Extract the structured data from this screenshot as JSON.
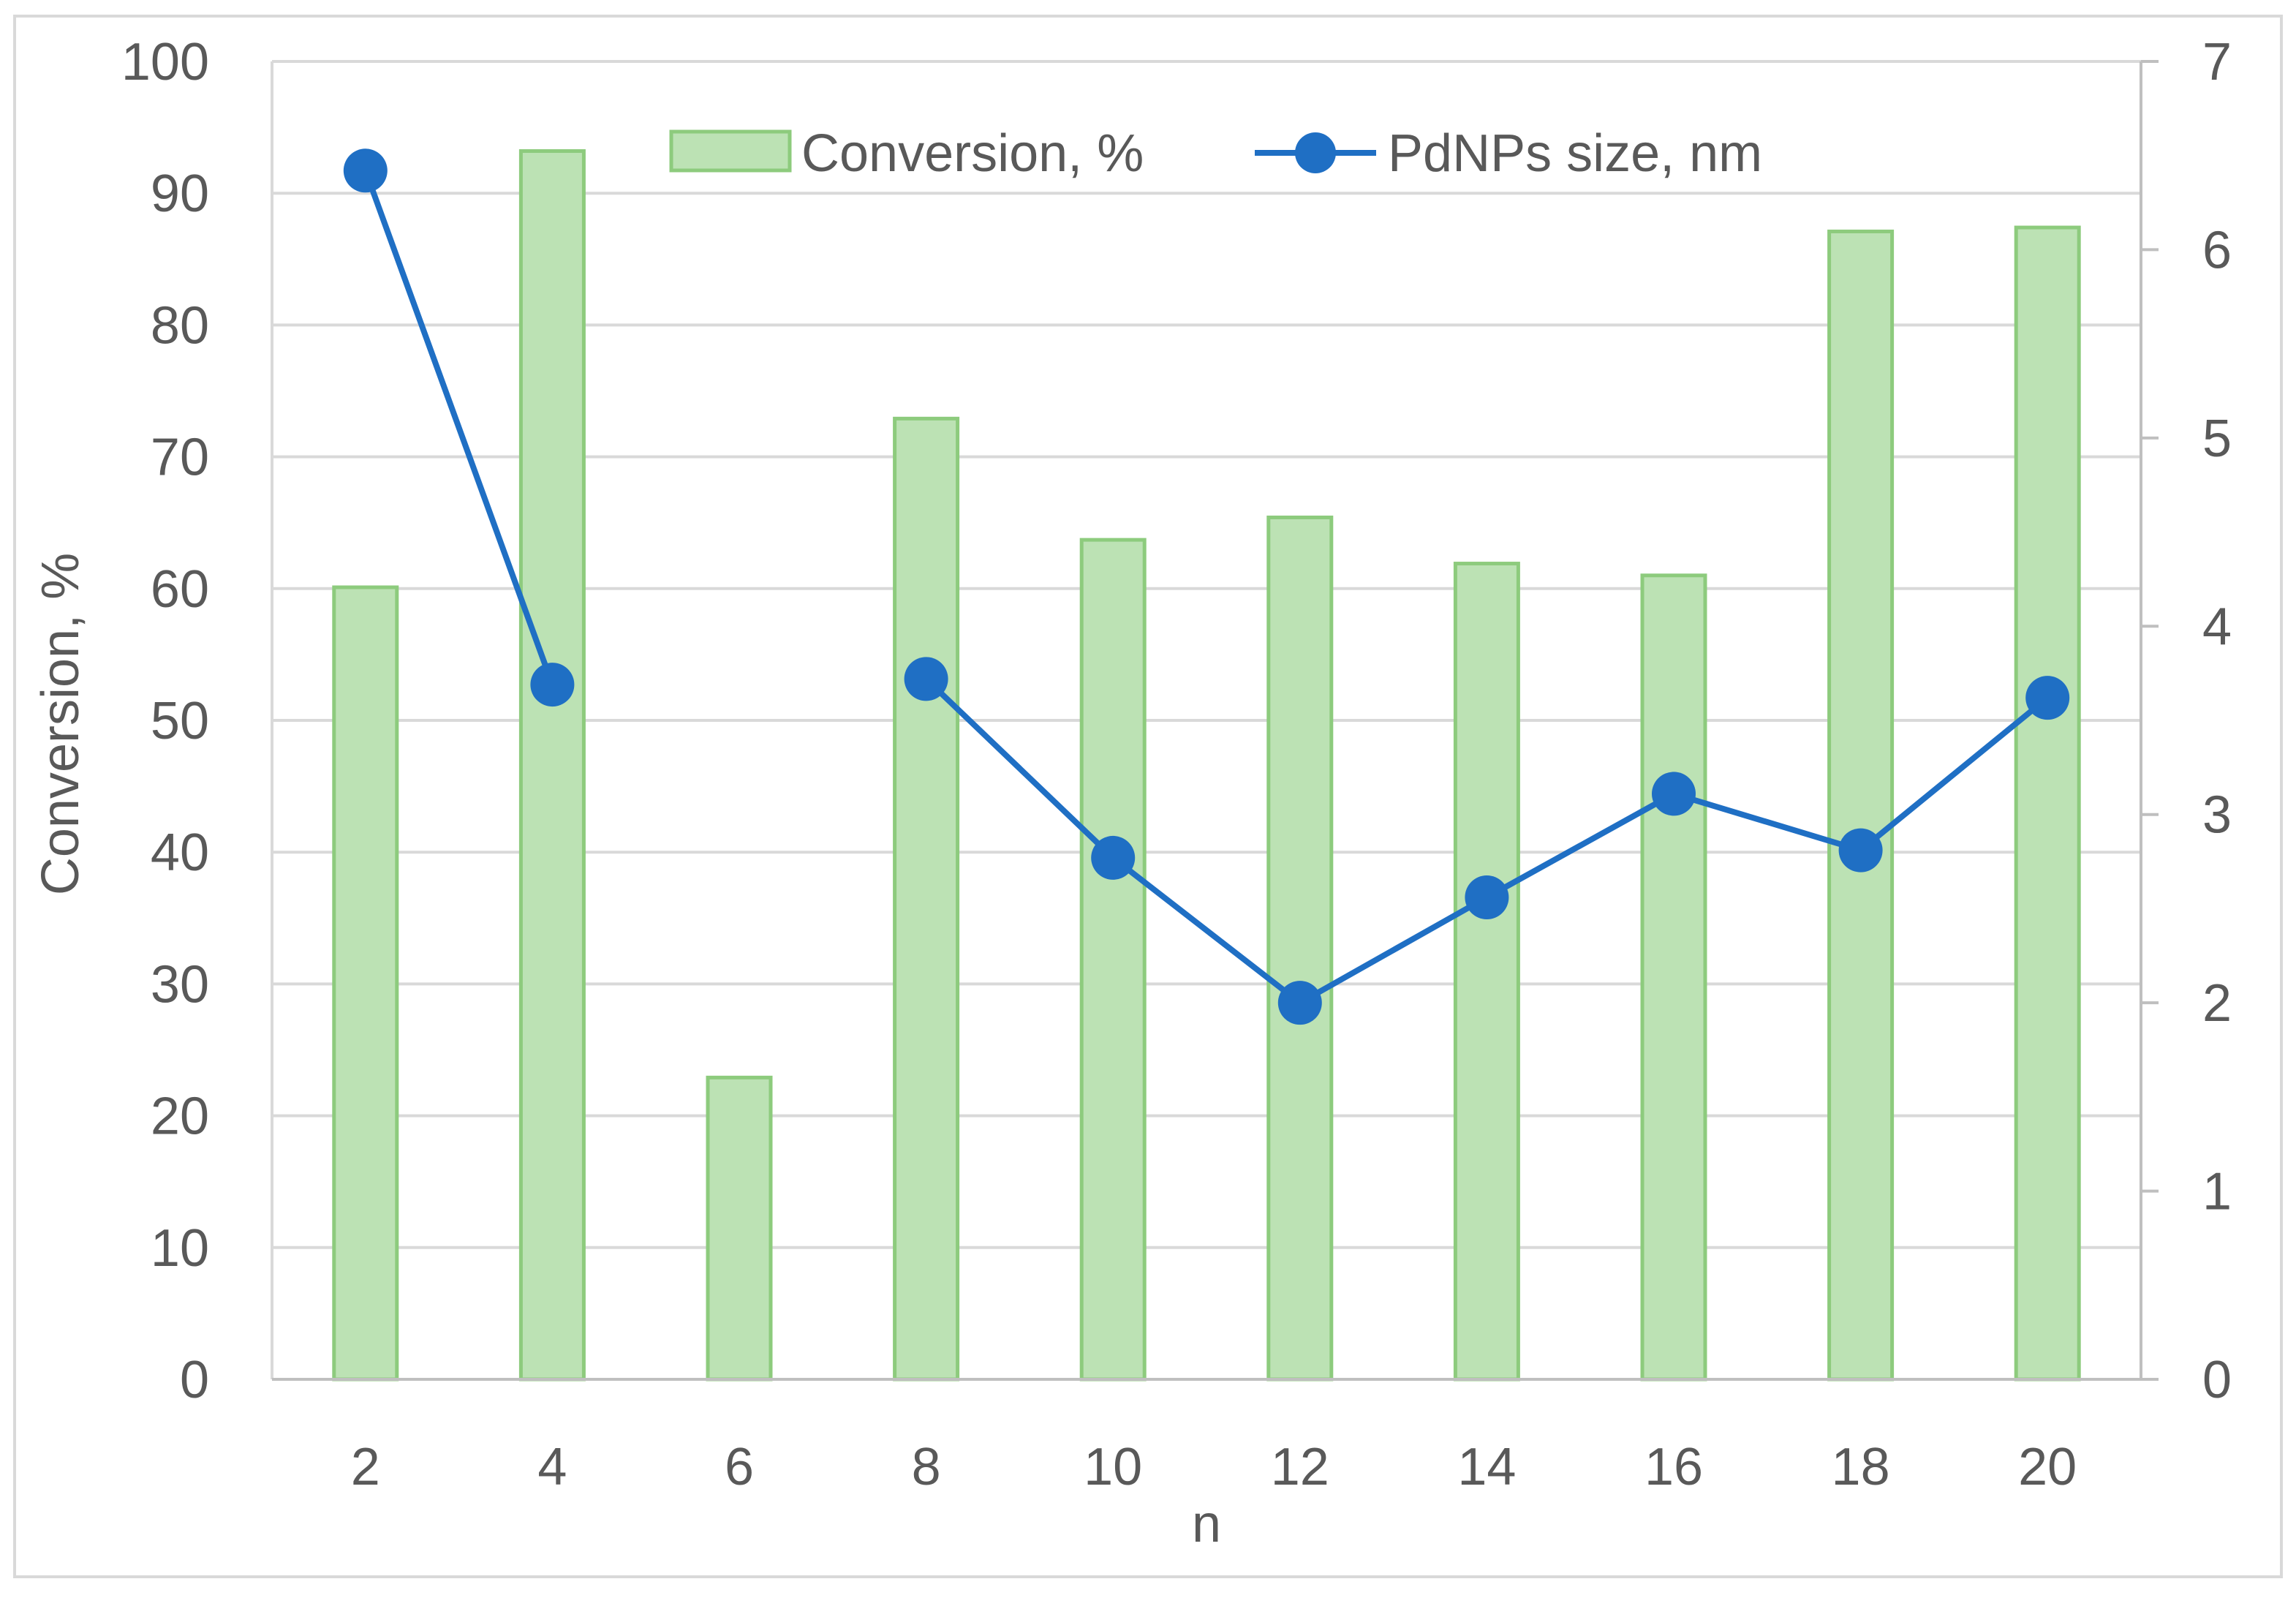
{
  "chart_data": {
    "type": "bar",
    "x": [
      2,
      4,
      6,
      8,
      10,
      12,
      14,
      16,
      18,
      20
    ],
    "categories": [
      "2",
      "4",
      "6",
      "8",
      "10",
      "12",
      "14",
      "16",
      "18",
      "20"
    ],
    "xlabel": "n",
    "ylabel": "Conversion, %",
    "y2label": "",
    "ylim": [
      0,
      100
    ],
    "y2lim": [
      0,
      7
    ],
    "yticks": [
      0,
      10,
      20,
      30,
      40,
      50,
      60,
      70,
      80,
      90,
      100
    ],
    "y2ticks": [
      0,
      1,
      2,
      3,
      4,
      5,
      6,
      7
    ],
    "grid": true,
    "legend_position": "top-center",
    "series": [
      {
        "name": "Conversion, %",
        "type": "bar",
        "axis": "left",
        "color": "#BCE2B4",
        "edge_color": "#8DCB7D",
        "values": [
          60.1,
          93.2,
          22.9,
          72.9,
          63.7,
          65.4,
          61.9,
          61.0,
          87.1,
          87.4
        ]
      },
      {
        "name": "PdNPs size, nm",
        "type": "line",
        "axis": "right",
        "color": "#1F6FC4",
        "marker": "circle",
        "values": [
          6.42,
          3.69,
          null,
          3.72,
          2.77,
          2.0,
          2.56,
          3.11,
          2.81,
          3.62
        ]
      }
    ],
    "colors": {
      "gridline": "#D9D9D9",
      "axis": "#BFBFBF",
      "text": "#595959",
      "border": "#D9D9D9"
    }
  }
}
